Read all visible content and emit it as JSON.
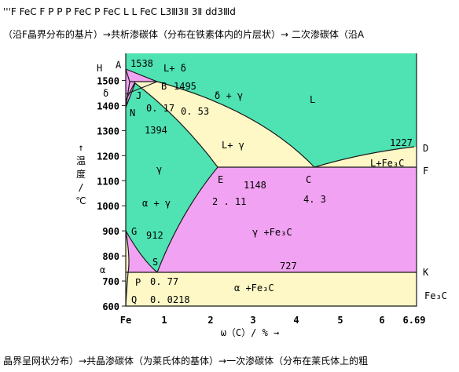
{
  "header": {
    "line1": "'''F FeC F P P P FeC P FeC L L FeC L3Ⅲ3Ⅱ 3Ⅱ dd3Ⅲd",
    "line2": "（沿F晶界分布的基片）→共析渗碳体（分布在铁素体内的片层状）→ 二次渗碳体（沿A"
  },
  "footer": "晶界呈网状分布）→共晶渗碳体（为莱氏体的基体）→一次渗碳体（分布在莱氏体上的粗",
  "diagram": {
    "y_axis": {
      "label": "↑温度/℃",
      "ticks": [
        1500,
        1400,
        1300,
        1200,
        1100,
        1000,
        900,
        800,
        700,
        600
      ]
    },
    "x_axis": {
      "label": "ω（C）/ % →",
      "ticks": [
        "Fe",
        1,
        2,
        3,
        4,
        5,
        6,
        6.69
      ]
    },
    "annotations": [
      "A",
      "1538",
      "L+ δ",
      "H",
      "B",
      "1495",
      "δ",
      "J",
      "δ + γ",
      "L",
      "N",
      "0. 17",
      "0. 53",
      "1394",
      "L+ γ",
      "1227",
      "D",
      "γ",
      "L+Fe₃C",
      "F",
      "E",
      "1148",
      "C",
      "2 . 11",
      "4. 3",
      "α + γ",
      "γ +Fe₃C",
      "G",
      "912",
      "S",
      "727",
      "K",
      "α",
      "P",
      "0. 77",
      "α +Fe₃C",
      "Fe₃C",
      "Q",
      "0. 0218"
    ]
  }
}
